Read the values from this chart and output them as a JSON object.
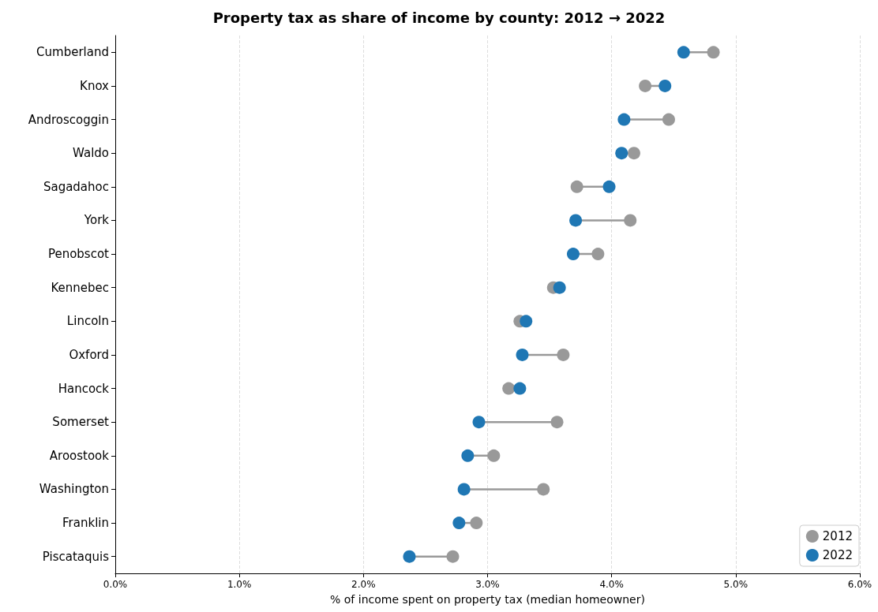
{
  "chart_data": {
    "type": "scatter",
    "orientation": "horizontal",
    "title": "Property tax as share of income by county: 2012 → 2022",
    "xlabel": "% of income spent on property tax (median homeowner)",
    "categories": [
      "Cumberland",
      "Knox",
      "Androscoggin",
      "Waldo",
      "Sagadahoc",
      "York",
      "Penobscot",
      "Kennebec",
      "Lincoln",
      "Oxford",
      "Hancock",
      "Somerset",
      "Aroostook",
      "Washington",
      "Franklin",
      "Piscataquis"
    ],
    "series": [
      {
        "name": "2012",
        "color": "#999999",
        "values": [
          4.82,
          4.27,
          4.46,
          4.18,
          3.72,
          4.15,
          3.89,
          3.53,
          3.26,
          3.61,
          3.17,
          3.56,
          3.05,
          3.45,
          2.91,
          2.72
        ]
      },
      {
        "name": "2022",
        "color": "#1f77b4",
        "values": [
          4.58,
          4.43,
          4.1,
          4.08,
          3.98,
          3.71,
          3.69,
          3.58,
          3.31,
          3.28,
          3.26,
          2.93,
          2.84,
          2.81,
          2.77,
          2.37
        ]
      }
    ],
    "xlim": [
      0,
      6
    ],
    "xticks": [
      {
        "value": 0,
        "label": "0.0%"
      },
      {
        "value": 1,
        "label": "1.0%"
      },
      {
        "value": 2,
        "label": "2.0%"
      },
      {
        "value": 3,
        "label": "3.0%"
      },
      {
        "value": 4,
        "label": "4.0%"
      },
      {
        "value": 5,
        "label": "5.0%"
      },
      {
        "value": 6,
        "label": "6.0%"
      }
    ],
    "grid": "x",
    "legend": "bottom right",
    "marker": "circle"
  }
}
